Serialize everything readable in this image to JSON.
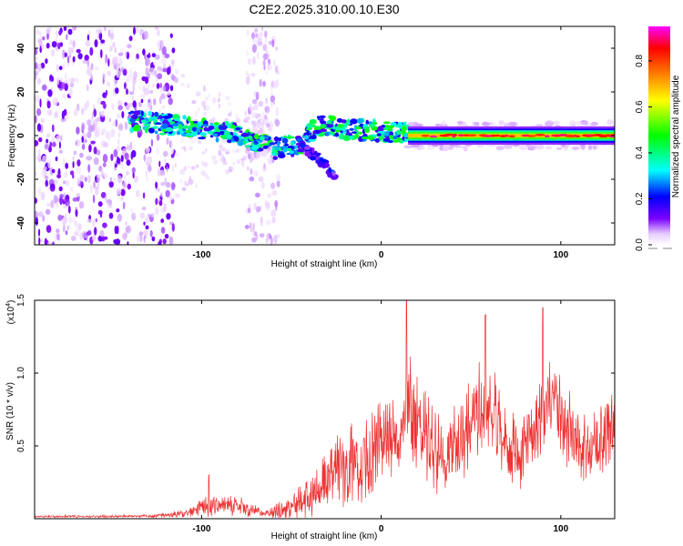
{
  "figure_title": "C2E2.2025.310.00.10.E30",
  "chart_data": [
    {
      "type": "heatmap",
      "name": "spectrogram",
      "xlabel": "Height of straight line (km)",
      "ylabel": "Frequency (Hz)",
      "xlim": [
        -193,
        130
      ],
      "ylim": [
        -50,
        50
      ],
      "x_ticks": [
        -100,
        0,
        100
      ],
      "x_tick_labels": [
        "-100",
        "0",
        "100"
      ],
      "y_ticks": [
        -40,
        -20,
        0,
        20,
        40
      ],
      "y_tick_labels": [
        "-40",
        "-20",
        "0",
        "20",
        "40"
      ],
      "colorbar": {
        "label": "Normalized spectral amplitude",
        "range": [
          0,
          0.95
        ],
        "ticks": [
          0.0,
          0.2,
          0.4,
          0.6,
          0.8
        ],
        "tick_labels": [
          "0.0",
          "0.2",
          "0.4",
          "0.6",
          "0.8"
        ],
        "colormap": [
          "#ffffff",
          "#7a00ff",
          "#0000ff",
          "#00ffff",
          "#00ff00",
          "#ffff00",
          "#ff8000",
          "#ff0000",
          "#ff00ff"
        ]
      },
      "features": [
        {
          "region": "scattered noise",
          "x_range": [
            -193,
            -115
          ],
          "freq_range": [
            -50,
            50
          ],
          "amplitude": 0.05
        },
        {
          "region": "vertical noise band",
          "x_range": [
            -75,
            -57
          ],
          "freq_range": [
            -50,
            50
          ],
          "amplitude": 0.03
        },
        {
          "region": "signal band",
          "x_range": [
            -140,
            15
          ],
          "freq_center_path": [
            [
              -140,
              7
            ],
            [
              -110,
              4
            ],
            [
              -80,
              1
            ],
            [
              -60,
              -6
            ],
            [
              -45,
              -4
            ],
            [
              -35,
              5
            ],
            [
              -20,
              3
            ],
            [
              0,
              2
            ],
            [
              15,
              1
            ]
          ],
          "amplitude": 0.3
        },
        {
          "region": "signal tail",
          "x_range": [
            -45,
            -25
          ],
          "freq_center_path": [
            [
              -45,
              -5
            ],
            [
              -35,
              -10
            ],
            [
              -28,
              -17
            ],
            [
              -25,
              -20
            ]
          ],
          "amplitude": 0.15
        },
        {
          "region": "steady line",
          "x_range": [
            15,
            130
          ],
          "freq_center": 0,
          "amplitude": 0.85
        }
      ]
    },
    {
      "type": "line",
      "name": "snr",
      "xlabel": "Height of straight line (km)",
      "ylabel": "SNR (10 * v/v)",
      "y_scale_label": "(x10",
      "y_scale_exponent": "4",
      "color": "#ee3333",
      "xlim": [
        -193,
        130
      ],
      "ylim": [
        0,
        15000
      ],
      "x_ticks": [
        -100,
        0,
        100
      ],
      "x_tick_labels": [
        "-100",
        "0",
        "100"
      ],
      "y_ticks": [
        5000,
        10000,
        15000
      ],
      "y_tick_labels": [
        "0.5",
        "1.0",
        "1.5"
      ],
      "envelope": {
        "x": [
          -193,
          -160,
          -130,
          -110,
          -100,
          -90,
          -80,
          -72,
          -65,
          -55,
          -40,
          -30,
          -20,
          -10,
          0,
          8,
          15,
          25,
          35,
          45,
          55,
          62,
          70,
          78,
          85,
          95,
          105,
          115,
          122,
          130
        ],
        "center": [
          150,
          150,
          180,
          350,
          800,
          900,
          900,
          600,
          300,
          600,
          1400,
          2500,
          3500,
          4000,
          5500,
          6500,
          7500,
          5500,
          4000,
          5500,
          8000,
          7500,
          5000,
          4500,
          6500,
          7500,
          6000,
          4500,
          5500,
          7000
        ],
        "amplitude": [
          80,
          80,
          100,
          250,
          700,
          800,
          800,
          500,
          250,
          700,
          1400,
          2200,
          3000,
          3000,
          3000,
          3500,
          4000,
          3200,
          2800,
          3000,
          3500,
          3200,
          2600,
          2600,
          3000,
          3500,
          3000,
          2400,
          2600,
          2800
        ]
      },
      "peaks": [
        {
          "x": -96,
          "y": 3000
        },
        {
          "x": 14,
          "y": 15000
        },
        {
          "x": 58,
          "y": 14000
        },
        {
          "x": 90,
          "y": 14500
        }
      ]
    }
  ]
}
